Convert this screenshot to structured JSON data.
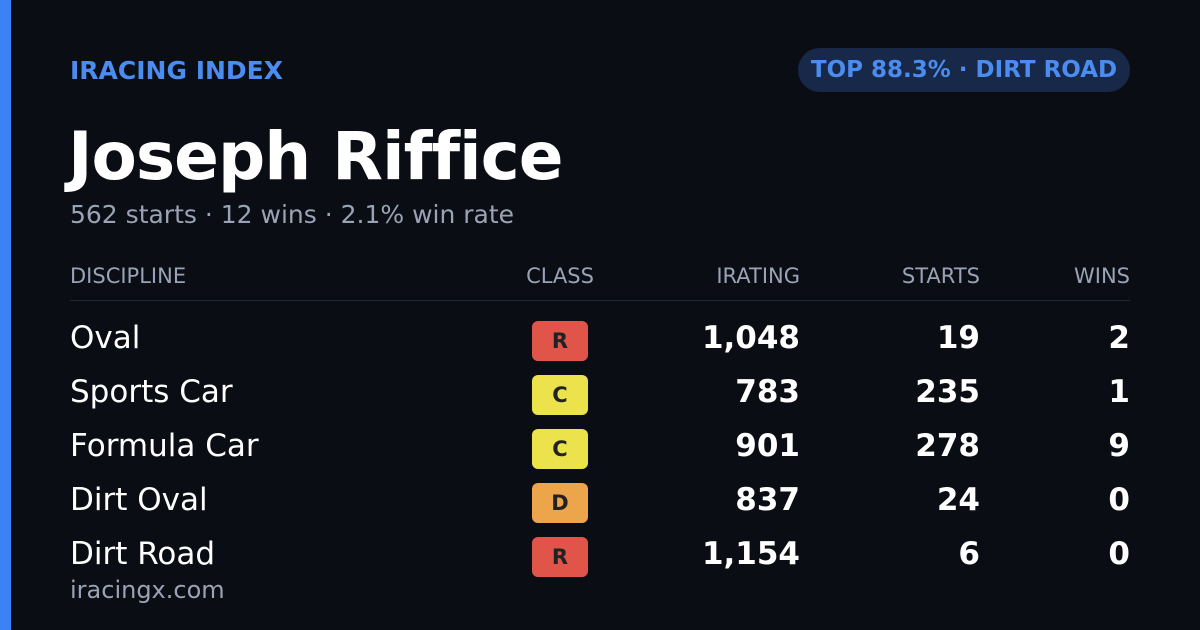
{
  "header": {
    "brand": "IRACING INDEX",
    "badge": "TOP 88.3% · DIRT ROAD",
    "name": "Joseph Riffice",
    "stats": "562 starts · 12 wins · 2.1% win rate"
  },
  "table": {
    "columns": [
      "DISCIPLINE",
      "CLASS",
      "IRATING",
      "STARTS",
      "WINS"
    ],
    "rows": [
      {
        "discipline": "Oval",
        "class": "R",
        "class_color": "#e0544a",
        "irating": "1,048",
        "starts": "19",
        "wins": "2"
      },
      {
        "discipline": "Sports Car",
        "class": "C",
        "class_color": "#ece24c",
        "irating": "783",
        "starts": "235",
        "wins": "1"
      },
      {
        "discipline": "Formula Car",
        "class": "C",
        "class_color": "#ece24c",
        "irating": "901",
        "starts": "278",
        "wins": "9"
      },
      {
        "discipline": "Dirt Oval",
        "class": "D",
        "class_color": "#eca54a",
        "irating": "837",
        "starts": "24",
        "wins": "0"
      },
      {
        "discipline": "Dirt Road",
        "class": "R",
        "class_color": "#e0544a",
        "irating": "1,154",
        "starts": "6",
        "wins": "0"
      }
    ]
  },
  "footer": {
    "site": "iracingx.com"
  }
}
